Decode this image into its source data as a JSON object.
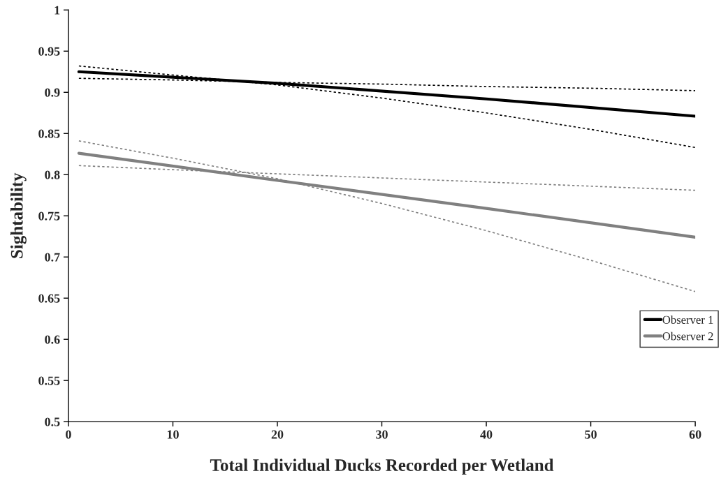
{
  "chart_data": {
    "type": "line",
    "xlabel": "Total Individual Ducks Recorded per Wetland",
    "ylabel": "Sightability",
    "xlim": [
      0,
      60
    ],
    "xticks": [
      0,
      10,
      20,
      30,
      40,
      50,
      60
    ],
    "ylim": [
      0.5,
      1
    ],
    "yticks": [
      0.5,
      0.55,
      0.6,
      0.65,
      0.7,
      0.75,
      0.8,
      0.85,
      0.9,
      0.95,
      1
    ],
    "grid": false,
    "legend": "right",
    "marker": "none",
    "series": [
      {
        "name": "Observer 1",
        "color": "#000000",
        "line_style": "solid",
        "x": [
          1,
          20,
          40,
          60
        ],
        "values": [
          0.925,
          0.911,
          0.892,
          0.871
        ]
      },
      {
        "name": "Observer 2",
        "color": "#808080",
        "line_style": "solid",
        "x": [
          1,
          20,
          40,
          60
        ],
        "values": [
          0.826,
          0.793,
          0.759,
          0.724
        ]
      },
      {
        "color": "#000000",
        "line_style": "dotted",
        "x": [
          1,
          10,
          20,
          30,
          40,
          50,
          60
        ],
        "values": [
          0.932,
          0.921,
          0.909,
          0.893,
          0.875,
          0.855,
          0.833
        ]
      },
      {
        "color": "#000000",
        "line_style": "dotted",
        "x": [
          1,
          10,
          20,
          30,
          40,
          50,
          60
        ],
        "values": [
          0.917,
          0.915,
          0.912,
          0.91,
          0.907,
          0.905,
          0.902
        ]
      },
      {
        "color": "#808080",
        "line_style": "dotted",
        "x": [
          1,
          10,
          20,
          30,
          40,
          50,
          60
        ],
        "values": [
          0.841,
          0.82,
          0.795,
          0.765,
          0.732,
          0.696,
          0.658
        ]
      },
      {
        "color": "#808080",
        "line_style": "dotted",
        "x": [
          1,
          10,
          20,
          30,
          40,
          50,
          60
        ],
        "values": [
          0.811,
          0.806,
          0.801,
          0.796,
          0.791,
          0.786,
          0.781
        ]
      }
    ]
  }
}
